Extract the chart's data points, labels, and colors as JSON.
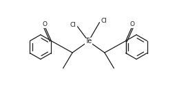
{
  "bg_color": "#ffffff",
  "line_color": "#1a1a1a",
  "line_width": 0.9,
  "font_size": 6.5,
  "te_font_size": 7.0,
  "figsize": [
    2.57,
    1.33
  ],
  "dpi": 100,
  "te_label": "Te",
  "cl_label": "Cl",
  "o_label": "O",
  "xlim": [
    -1.0,
    1.0
  ],
  "ylim": [
    -0.55,
    0.52
  ]
}
